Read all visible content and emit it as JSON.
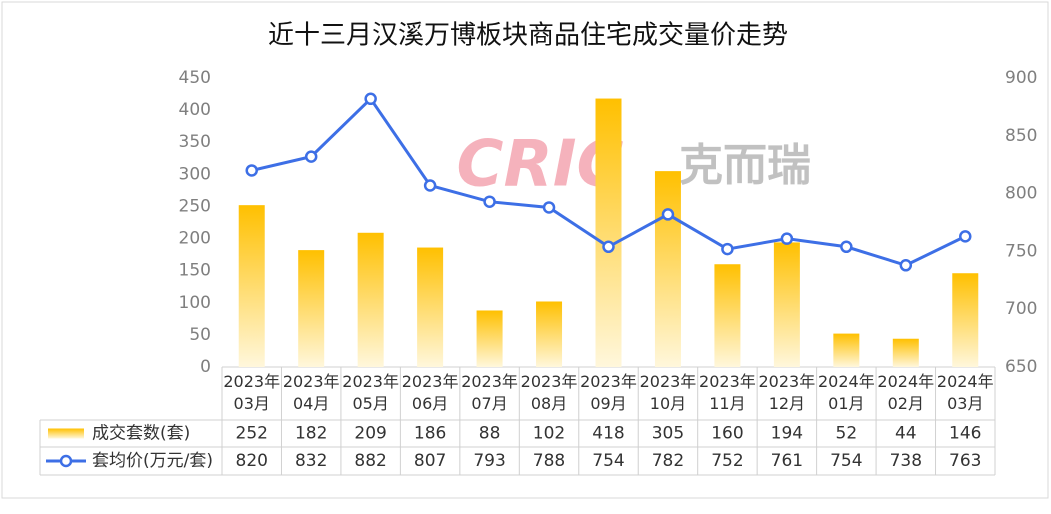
{
  "chart_data": {
    "type": "bar-line",
    "title": "近十三月汉溪万博板块商品住宅成交量价走势",
    "watermark": [
      "CRIC",
      "克而瑞"
    ],
    "categories": [
      "2023年03月",
      "2023年04月",
      "2023年05月",
      "2023年06月",
      "2023年07月",
      "2023年08月",
      "2023年09月",
      "2023年10月",
      "2023年11月",
      "2023年12月",
      "2024年01月",
      "2024年02月",
      "2024年03月"
    ],
    "series": [
      {
        "name": "成交套数(套)",
        "type": "bar",
        "color": "#ffc000",
        "values": [
          252,
          182,
          209,
          186,
          88,
          102,
          418,
          305,
          160,
          194,
          52,
          44,
          146
        ]
      },
      {
        "name": "套均价(万元/套)",
        "type": "line",
        "axis": "y2",
        "color": "#3d6fe6",
        "values": [
          820,
          832,
          882,
          807,
          793,
          788,
          754,
          782,
          752,
          761,
          754,
          738,
          763
        ]
      }
    ],
    "ylim": [
      0,
      450
    ],
    "yticks": [
      0,
      50,
      100,
      150,
      200,
      250,
      300,
      350,
      400,
      450
    ],
    "y2lim": [
      650,
      900
    ],
    "y2ticks": [
      650,
      700,
      750,
      800,
      850,
      900
    ],
    "grid": false,
    "legend": "table"
  }
}
